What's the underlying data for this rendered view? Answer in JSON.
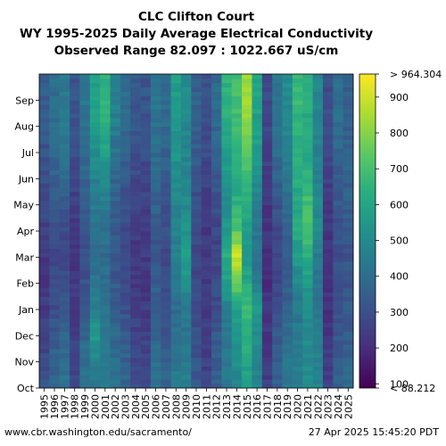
{
  "chart_data": {
    "type": "heatmap",
    "title": [
      "CLC Clifton Court",
      "WY 1995-2025 Daily Average Electrical Conductivity",
      "Observed Range 82.097 : 1022.667 uS/cm"
    ],
    "x": [
      "1995",
      "1996",
      "1997",
      "1998",
      "1999",
      "2000",
      "2001",
      "2002",
      "2003",
      "2004",
      "2005",
      "2006",
      "2007",
      "2008",
      "2009",
      "2010",
      "2011",
      "2012",
      "2013",
      "2014",
      "2015",
      "2016",
      "2017",
      "2018",
      "2019",
      "2020",
      "2021",
      "2022",
      "2023",
      "2024",
      "2025"
    ],
    "y_ticks": [
      "Oct",
      "Nov",
      "Dec",
      "Jan",
      "Feb",
      "Mar",
      "Apr",
      "May",
      "Jun",
      "Jul",
      "Aug",
      "Sep"
    ],
    "colorbar": {
      "min": 88.212,
      "max": 964.304,
      "ticks": [
        100,
        200,
        300,
        400,
        500,
        600,
        700,
        800,
        900
      ],
      "top_label": "> 964.304",
      "bottom_label": "< 88.212",
      "colormap": "viridis"
    },
    "monthly_values": [
      [
        330,
        300,
        250,
        240,
        230,
        230,
        260,
        280,
        300,
        320,
        330,
        340
      ],
      [
        380,
        360,
        330,
        300,
        290,
        280,
        300,
        330,
        360,
        380,
        390,
        400
      ],
      [
        420,
        400,
        380,
        330,
        300,
        290,
        300,
        340,
        380,
        420,
        440,
        450
      ],
      [
        280,
        260,
        250,
        240,
        230,
        230,
        240,
        260,
        280,
        300,
        310,
        320
      ],
      [
        430,
        410,
        380,
        330,
        310,
        300,
        320,
        340,
        370,
        400,
        420,
        430
      ],
      [
        420,
        500,
        560,
        470,
        430,
        400,
        420,
        450,
        480,
        520,
        560,
        580
      ],
      [
        480,
        460,
        450,
        420,
        400,
        390,
        410,
        460,
        520,
        580,
        640,
        650
      ],
      [
        420,
        400,
        380,
        350,
        330,
        320,
        330,
        350,
        380,
        420,
        460,
        480
      ],
      [
        380,
        360,
        340,
        300,
        280,
        270,
        280,
        300,
        330,
        360,
        380,
        400
      ],
      [
        300,
        280,
        260,
        250,
        240,
        240,
        250,
        270,
        290,
        310,
        320,
        330
      ],
      [
        280,
        270,
        260,
        250,
        240,
        240,
        250,
        260,
        280,
        300,
        310,
        320
      ],
      [
        420,
        400,
        380,
        360,
        340,
        330,
        340,
        360,
        380,
        400,
        420,
        430
      ],
      [
        370,
        350,
        330,
        310,
        300,
        290,
        300,
        320,
        340,
        370,
        390,
        400
      ],
      [
        450,
        430,
        420,
        400,
        430,
        460,
        480,
        500,
        520,
        540,
        560,
        570
      ],
      [
        460,
        440,
        420,
        450,
        520,
        580,
        540,
        500,
        480,
        490,
        500,
        510
      ],
      [
        330,
        320,
        300,
        290,
        280,
        270,
        280,
        300,
        320,
        340,
        350,
        360
      ],
      [
        270,
        260,
        250,
        240,
        230,
        230,
        240,
        250,
        270,
        290,
        300,
        310
      ],
      [
        350,
        340,
        330,
        300,
        280,
        270,
        280,
        300,
        330,
        360,
        380,
        390
      ],
      [
        450,
        440,
        430,
        480,
        580,
        620,
        560,
        520,
        540,
        580,
        620,
        650
      ],
      [
        500,
        520,
        560,
        600,
        780,
        900,
        720,
        640,
        620,
        640,
        680,
        700
      ],
      [
        560,
        600,
        650,
        700,
        600,
        560,
        580,
        620,
        680,
        760,
        820,
        830
      ],
      [
        480,
        500,
        520,
        560,
        450,
        420,
        440,
        480,
        520,
        560,
        580,
        590
      ],
      [
        250,
        240,
        230,
        220,
        210,
        210,
        220,
        230,
        250,
        270,
        280,
        290
      ],
      [
        350,
        340,
        330,
        300,
        280,
        270,
        290,
        320,
        360,
        400,
        420,
        430
      ],
      [
        430,
        420,
        400,
        370,
        350,
        340,
        360,
        390,
        430,
        470,
        500,
        510
      ],
      [
        470,
        460,
        450,
        430,
        500,
        560,
        620,
        600,
        620,
        640,
        660,
        670
      ],
      [
        520,
        510,
        500,
        520,
        560,
        650,
        720,
        700,
        640,
        600,
        620,
        640
      ],
      [
        480,
        470,
        450,
        430,
        420,
        450,
        500,
        520,
        480,
        460,
        480,
        490
      ],
      [
        250,
        240,
        230,
        220,
        220,
        220,
        230,
        240,
        260,
        280,
        290,
        300
      ],
      [
        360,
        350,
        330,
        310,
        300,
        300,
        310,
        330,
        350,
        380,
        400,
        410
      ],
      [
        380,
        370,
        350,
        330,
        320,
        320,
        330,
        350,
        360,
        360,
        360,
        360
      ]
    ]
  },
  "footer": {
    "left": "www.cbr.washington.edu/sacramento/",
    "right": "27 Apr 2025 15:45:20 PDT"
  }
}
